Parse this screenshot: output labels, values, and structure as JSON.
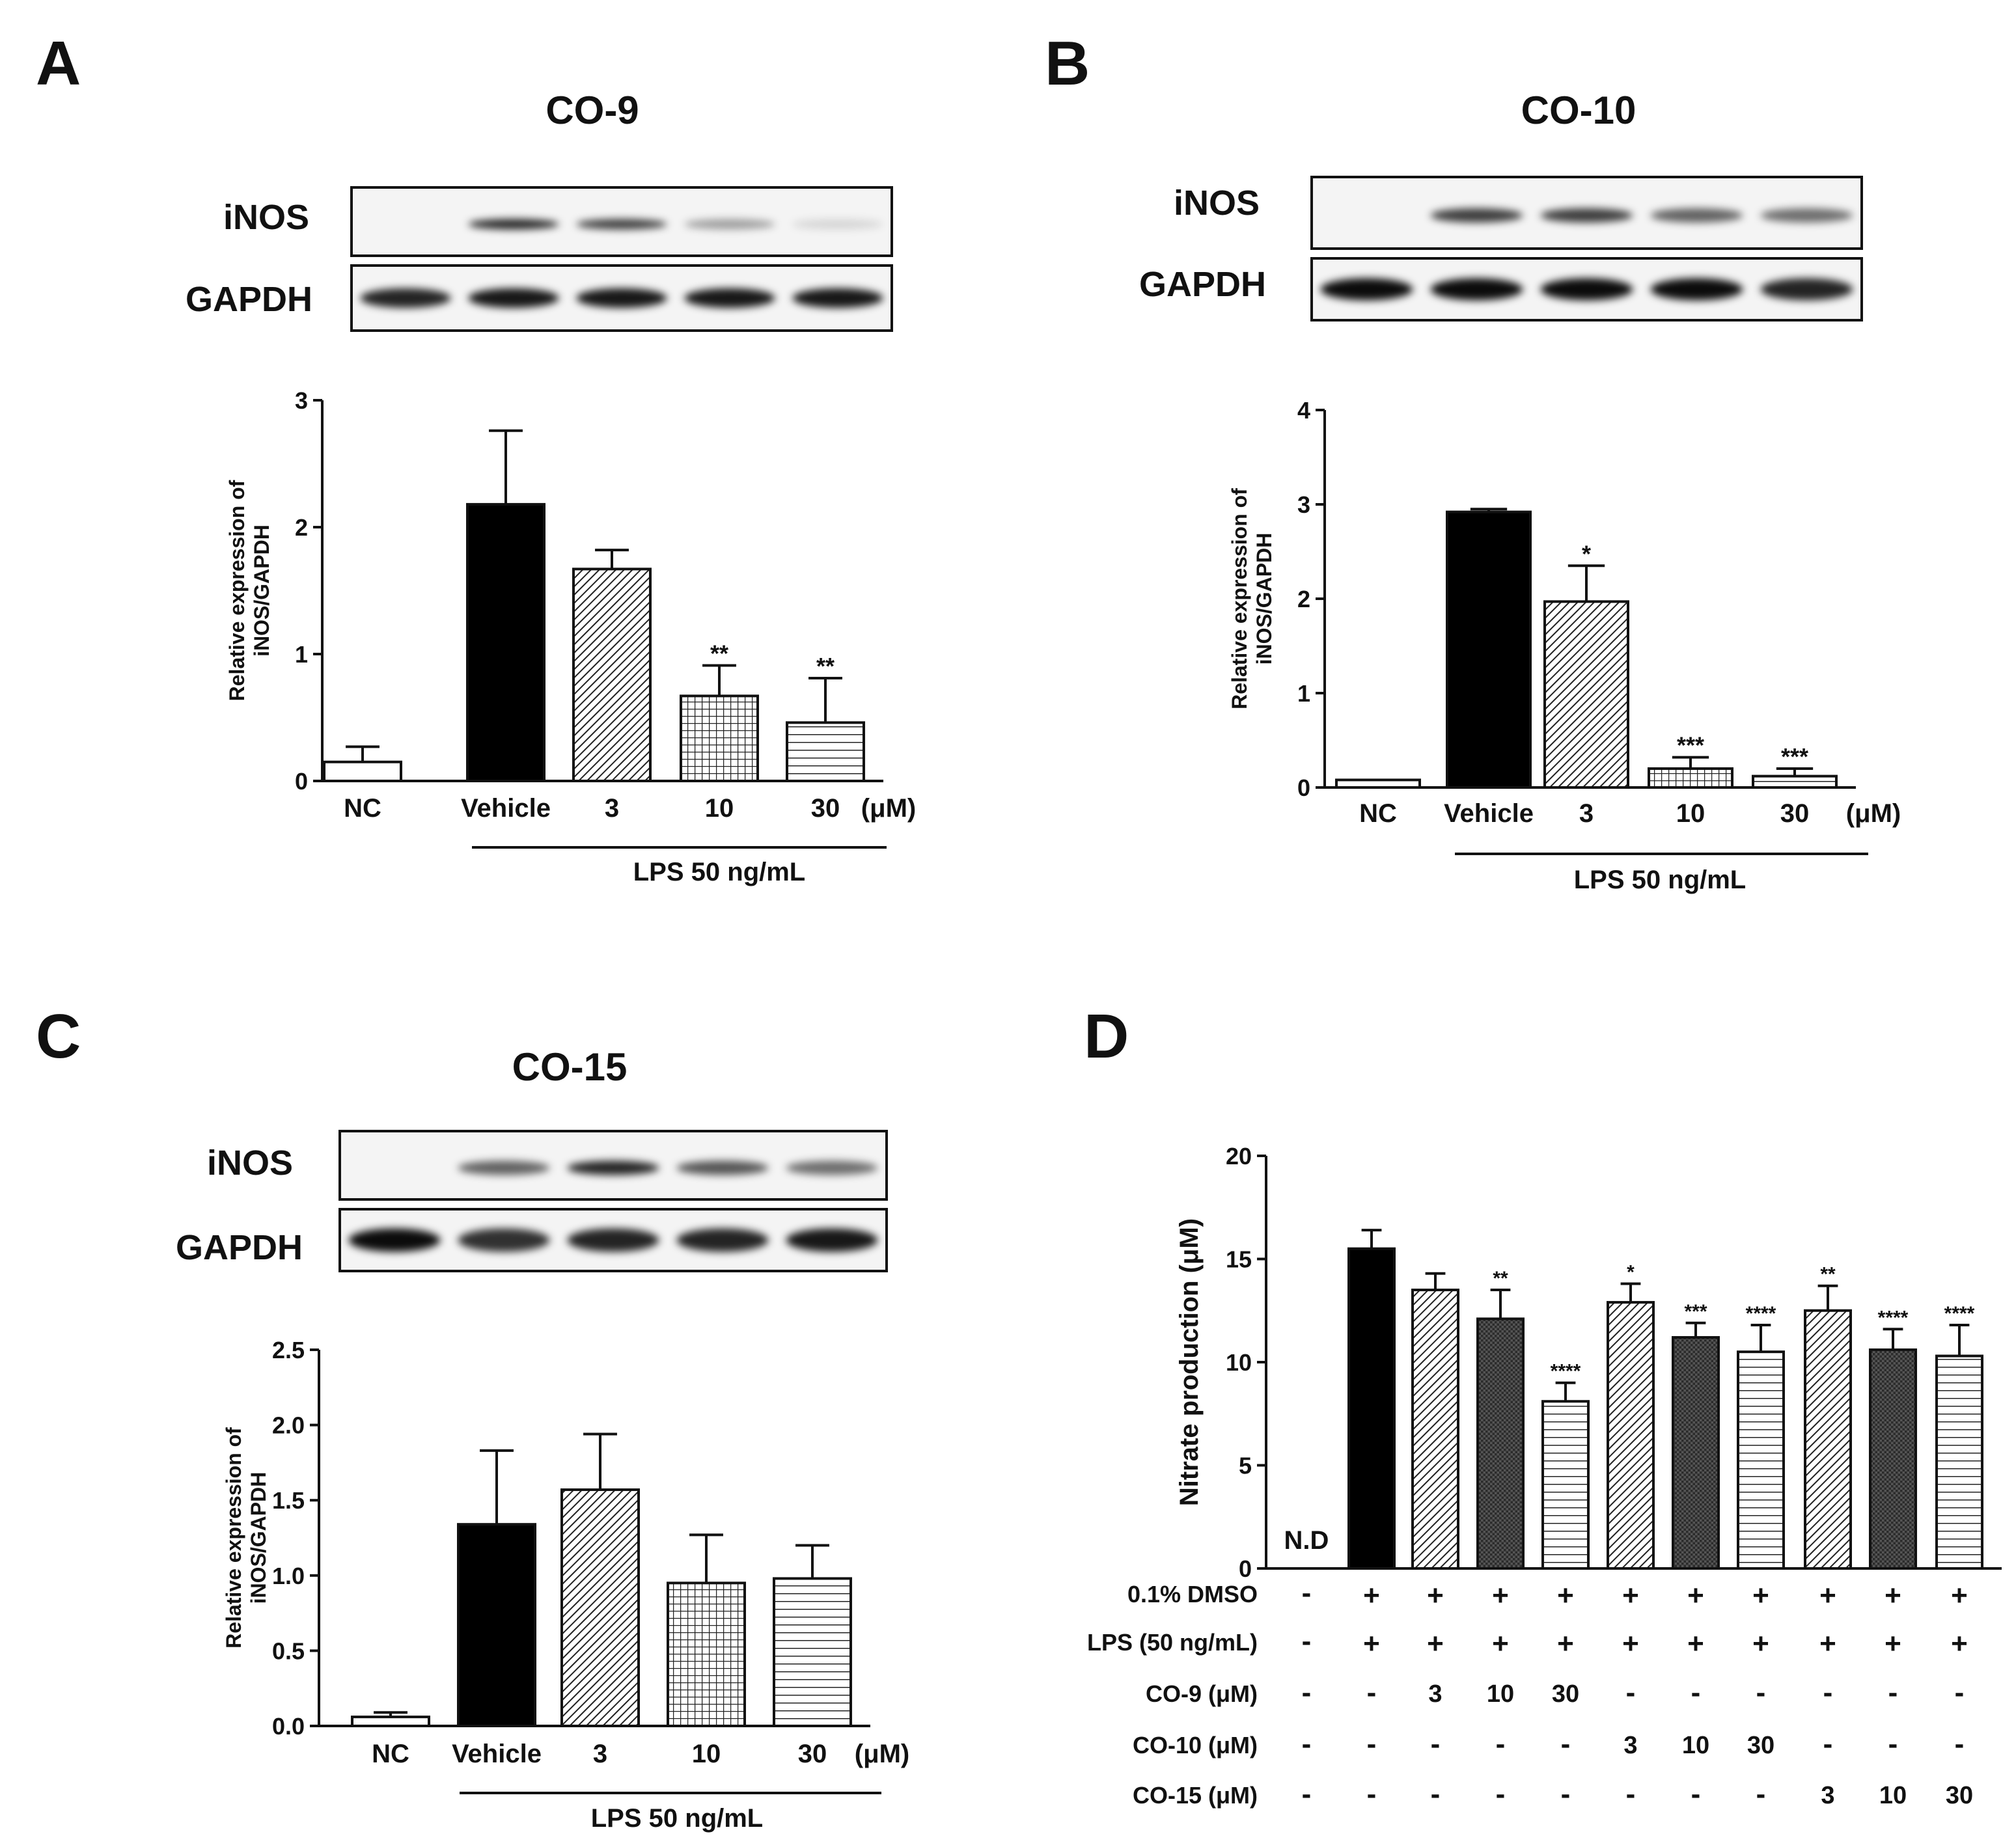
{
  "panels": {
    "A": {
      "letter": "A",
      "title": "CO-9",
      "blot_labels": [
        "iNOS",
        "GAPDH"
      ],
      "iNOS_bands": [
        0,
        0.85,
        0.75,
        0.35,
        0.12
      ],
      "GAPDH_bands": [
        0.85,
        0.9,
        0.9,
        0.9,
        0.9
      ]
    },
    "B": {
      "letter": "B",
      "title": "CO-10",
      "blot_labels": [
        "iNOS",
        "GAPDH"
      ],
      "iNOS_bands": [
        0,
        0.75,
        0.75,
        0.6,
        0.55
      ],
      "GAPDH_bands": [
        0.95,
        0.95,
        0.95,
        0.95,
        0.85
      ]
    },
    "C": {
      "letter": "C",
      "title": "CO-15",
      "blot_labels": [
        "iNOS",
        "GAPDH"
      ],
      "iNOS_bands": [
        0,
        0.6,
        0.85,
        0.65,
        0.55
      ],
      "GAPDH_bands": [
        0.95,
        0.8,
        0.85,
        0.85,
        0.9
      ]
    },
    "D": {
      "letter": "D"
    }
  },
  "chart_data": [
    {
      "panel": "A",
      "type": "bar",
      "categories": [
        "NC",
        "Vehicle",
        "3",
        "10",
        "30"
      ],
      "unit_label": "(μM)",
      "values": [
        0.15,
        2.18,
        1.67,
        0.67,
        0.46
      ],
      "errors": [
        0.12,
        0.58,
        0.15,
        0.24,
        0.35
      ],
      "significance": [
        "",
        "",
        "",
        "**",
        "**"
      ],
      "fills": [
        "white",
        "black",
        "diag",
        "grid",
        "hlines"
      ],
      "ylabel": "Relative expression of iNOS/GAPDH",
      "ylim": [
        0,
        3
      ],
      "yticks": [
        "0",
        "1",
        "2",
        "3"
      ],
      "group_label": "LPS 50 ng/mL"
    },
    {
      "panel": "B",
      "type": "bar",
      "categories": [
        "NC",
        "Vehicle",
        "3",
        "10",
        "30"
      ],
      "unit_label": "(μM)",
      "values": [
        0.08,
        2.92,
        1.97,
        0.2,
        0.12
      ],
      "errors": [
        0.0,
        0.03,
        0.38,
        0.12,
        0.08
      ],
      "significance": [
        "",
        "",
        "*",
        "***",
        "***"
      ],
      "fills": [
        "white",
        "black",
        "diag",
        "grid",
        "hlines"
      ],
      "ylabel": "Relative expression of iNOS/GAPDH",
      "ylim": [
        0,
        4
      ],
      "yticks": [
        "0",
        "1",
        "2",
        "3",
        "4"
      ],
      "group_label": "LPS 50 ng/mL"
    },
    {
      "panel": "C",
      "type": "bar",
      "categories": [
        "NC",
        "Vehicle",
        "3",
        "10",
        "30"
      ],
      "unit_label": "(μM)",
      "values": [
        0.06,
        1.34,
        1.57,
        0.95,
        0.98
      ],
      "errors": [
        0.03,
        0.49,
        0.37,
        0.32,
        0.22
      ],
      "significance": [
        "",
        "",
        "",
        "",
        ""
      ],
      "fills": [
        "white",
        "black",
        "diag",
        "grid",
        "hlines"
      ],
      "ylabel": "Relative expression of iNOS/GAPDH",
      "ylim": [
        0,
        2.5
      ],
      "yticks": [
        "0.0",
        "0.5",
        "1.0",
        "1.5",
        "2.0",
        "2.5"
      ],
      "group_label": "LPS 50 ng/mL"
    },
    {
      "panel": "D",
      "type": "bar",
      "values": [
        0,
        15.5,
        13.5,
        12.1,
        8.1,
        12.9,
        11.2,
        10.5,
        12.5,
        10.6,
        10.3
      ],
      "errors": [
        0,
        0.9,
        0.8,
        1.4,
        0.9,
        0.9,
        0.7,
        1.3,
        1.2,
        1.0,
        1.5
      ],
      "significance": [
        "",
        "",
        "",
        "**",
        "****",
        "*",
        "***",
        "****",
        "**",
        "****",
        "****"
      ],
      "bar_note": [
        "N.D",
        "",
        "",
        "",
        "",
        "",
        "",
        "",
        "",
        "",
        ""
      ],
      "fills": [
        "none",
        "black",
        "diag",
        "dark",
        "hlines",
        "diag",
        "dark",
        "hlines",
        "diag",
        "dark",
        "hlines"
      ],
      "ylabel": "Nitrate production (μM)",
      "ylim": [
        0,
        20
      ],
      "yticks": [
        "0",
        "5",
        "10",
        "15",
        "20"
      ],
      "treatment_table": {
        "row_labels": [
          "0.1% DMSO",
          "LPS (50 ng/mL)",
          "CO-9  (μM)",
          "CO-10 (μM)",
          "CO-15 (μM)"
        ],
        "rows": [
          [
            "-",
            "+",
            "+",
            "+",
            "+",
            "+",
            "+",
            "+",
            "+",
            "+",
            "+"
          ],
          [
            "-",
            "+",
            "+",
            "+",
            "+",
            "+",
            "+",
            "+",
            "+",
            "+",
            "+"
          ],
          [
            "-",
            "-",
            "3",
            "10",
            "30",
            "-",
            "-",
            "-",
            "-",
            "-",
            "-"
          ],
          [
            "-",
            "-",
            "-",
            "-",
            "-",
            "3",
            "10",
            "30",
            "-",
            "-",
            "-"
          ],
          [
            "-",
            "-",
            "-",
            "-",
            "-",
            "-",
            "-",
            "-",
            "3",
            "10",
            "30"
          ]
        ]
      }
    }
  ]
}
